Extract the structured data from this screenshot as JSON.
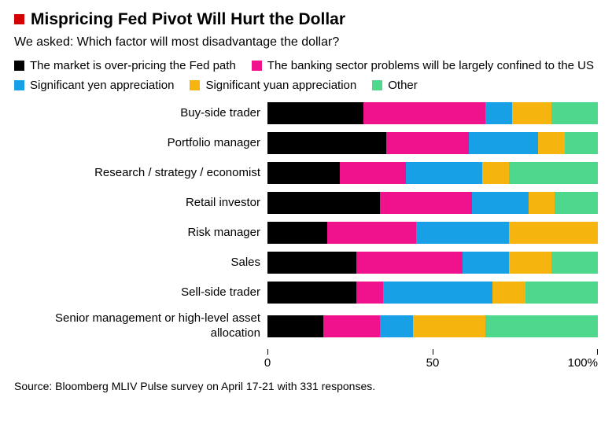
{
  "header": {
    "title": "Mispricing Fed Pivot Will Hurt the Dollar",
    "subtitle": "We asked: Which factor will most disadvantage the dollar?",
    "accent_color": "#d40000"
  },
  "chart_data": {
    "type": "bar",
    "orientation": "horizontal",
    "stacked": true,
    "unit": "percent",
    "xlim": [
      0,
      100
    ],
    "grid": false,
    "legend_position": "top",
    "categories": [
      "Buy-side trader",
      "Portfolio manager",
      "Research / strategy / economist",
      "Retail investor",
      "Risk manager",
      "Sales",
      "Sell-side trader",
      "Senior management or high-level asset allocation"
    ],
    "series": [
      {
        "name": "The market is over-pricing the Fed path",
        "color": "#000000",
        "values": [
          29,
          36,
          22,
          34,
          18,
          27,
          27,
          17
        ]
      },
      {
        "name": "The banking sector problems will be largely confined to the US",
        "color": "#f0128d",
        "values": [
          37,
          25,
          20,
          28,
          27,
          32,
          8,
          17
        ]
      },
      {
        "name": "Significant yen appreciation",
        "color": "#18a0e6",
        "values": [
          8,
          21,
          23,
          17,
          28,
          14,
          33,
          10
        ]
      },
      {
        "name": "Significant yuan appreciation",
        "color": "#f5b40e",
        "values": [
          12,
          8,
          8,
          8,
          27,
          13,
          10,
          22
        ]
      },
      {
        "name": "Other",
        "color": "#4ed88e",
        "values": [
          14,
          10,
          27,
          13,
          0,
          14,
          22,
          34
        ]
      }
    ],
    "x_ticks": [
      {
        "label": "0",
        "value": 0
      },
      {
        "label": "50",
        "value": 50
      },
      {
        "label": "100%",
        "value": 100
      }
    ]
  },
  "footer": {
    "source": "Source: Bloomberg MLIV Pulse survey on April 17-21 with 331 responses."
  }
}
